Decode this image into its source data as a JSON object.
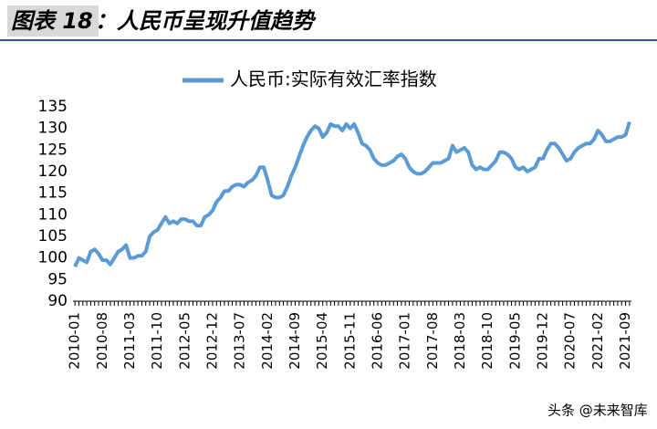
{
  "chart_data": {
    "type": "line",
    "title_prefix": "图表 18",
    "title": "：人民币呈现升值趋势",
    "watermark": "头条 @未来智库",
    "categories": [
      "2010-01",
      null,
      null,
      null,
      null,
      null,
      null,
      "2010-08",
      null,
      null,
      null,
      null,
      null,
      null,
      "2011-03",
      null,
      null,
      null,
      null,
      null,
      null,
      "2011-10",
      null,
      null,
      null,
      null,
      null,
      null,
      "2012-05",
      null,
      null,
      null,
      null,
      null,
      null,
      "2012-12",
      null,
      null,
      null,
      null,
      null,
      null,
      "2013-07",
      null,
      null,
      null,
      null,
      null,
      null,
      "2014-02",
      null,
      null,
      null,
      null,
      null,
      null,
      "2014-09",
      null,
      null,
      null,
      null,
      null,
      null,
      "2015-04",
      null,
      null,
      null,
      null,
      null,
      null,
      "2015-11",
      null,
      null,
      null,
      null,
      null,
      null,
      "2016-06",
      null,
      null,
      null,
      null,
      null,
      null,
      "2017-01",
      null,
      null,
      null,
      null,
      null,
      null,
      "2017-08",
      null,
      null,
      null,
      null,
      null,
      null,
      "2018-03",
      null,
      null,
      null,
      null,
      null,
      null,
      "2018-10",
      null,
      null,
      null,
      null,
      null,
      null,
      "2019-05",
      null,
      null,
      null,
      null,
      null,
      null,
      "2019-12",
      null,
      null,
      null,
      null,
      null,
      null,
      "2020-07",
      null,
      null,
      null,
      null,
      null,
      null,
      "2021-02",
      null,
      null,
      null,
      null,
      null,
      null,
      "2021-09",
      null
    ],
    "series": [
      {
        "name": "人民币:实际有效汇率指数",
        "color": "#5b9bd5",
        "values": [
          98,
          100,
          99.5,
          99,
          101.5,
          102,
          101,
          99.5,
          99.5,
          98.5,
          100,
          101.5,
          102,
          103,
          100,
          100,
          100.5,
          100.5,
          101.5,
          105,
          106,
          106.5,
          108,
          109.5,
          108,
          108.5,
          108,
          109,
          109,
          108.5,
          108.5,
          107.5,
          107.5,
          109.5,
          110,
          111,
          113,
          114,
          115.5,
          115.5,
          116.5,
          117,
          117,
          116.5,
          117.5,
          118,
          119,
          121,
          121,
          118,
          114.5,
          114,
          114,
          114.5,
          116.5,
          119,
          121,
          123.5,
          126,
          128,
          129.5,
          130.5,
          130,
          128,
          129,
          131,
          130.5,
          130.5,
          129.5,
          131,
          130,
          131,
          129,
          126.5,
          126,
          125,
          123,
          122,
          121.5,
          121.5,
          122,
          122.5,
          123.5,
          124,
          123,
          121,
          120,
          119.5,
          119.5,
          120,
          121,
          122,
          122,
          122,
          122.5,
          123,
          126,
          124.5,
          125,
          125.5,
          124.5,
          121.5,
          120.5,
          121,
          120.5,
          120.5,
          121.5,
          122.5,
          124.5,
          124.5,
          124,
          123,
          121,
          120.5,
          121,
          120,
          120.5,
          121,
          123,
          123,
          125,
          126.5,
          126.5,
          125.5,
          124,
          122.5,
          123,
          124.5,
          125.5,
          126,
          126.5,
          126.5,
          127.5,
          129.5,
          128.5,
          127,
          127,
          127.5,
          128,
          128,
          128.5,
          131.5
        ]
      }
    ],
    "ylim": [
      90,
      135
    ],
    "yticks": [
      90,
      95,
      100,
      105,
      110,
      115,
      120,
      125,
      130,
      135
    ],
    "grid": false
  }
}
